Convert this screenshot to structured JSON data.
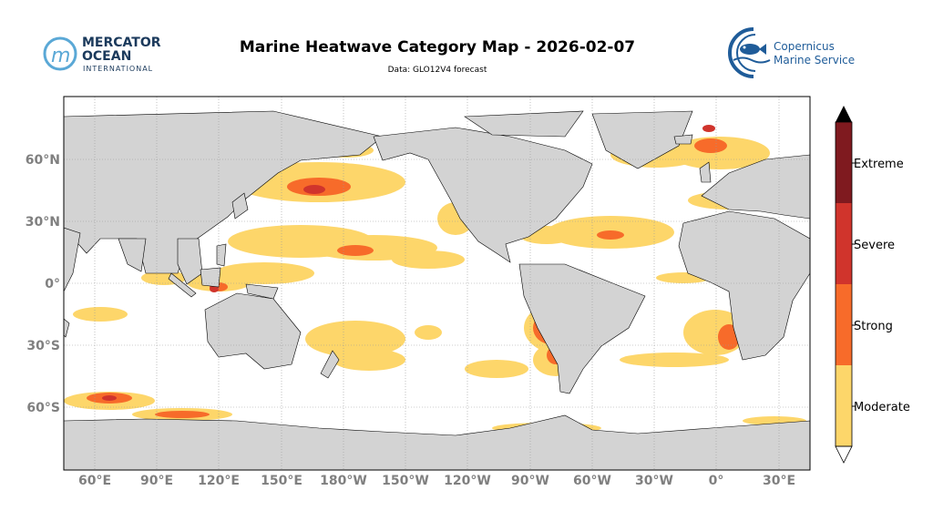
{
  "header": {
    "title": "Marine Heatwave Category Map - 2026-02-07",
    "subtitle": "Data: GLO12V4 forecast"
  },
  "logos": {
    "mercator": {
      "line1": "MERCATOR",
      "line2": "OCEAN",
      "line3": "INTERNATIONAL"
    },
    "copernicus": {
      "line1": "Copernicus",
      "line2": "Marine Service"
    }
  },
  "map": {
    "lat_labels": [
      "60°N",
      "30°N",
      "0°",
      "30°S",
      "60°S"
    ],
    "lon_labels": [
      "60°E",
      "90°E",
      "120°E",
      "150°E",
      "180°W",
      "150°W",
      "120°W",
      "90°W",
      "60°W",
      "30°W",
      "0°",
      "30°E"
    ],
    "colors": {
      "ocean": "#ffffff",
      "land": "#d3d3d3",
      "moderate": "#fdd66a",
      "strong": "#f76b2a",
      "severe": "#d0342c",
      "extreme": "#7f1a1f"
    }
  },
  "colorbar": {
    "categories": [
      "Moderate",
      "Strong",
      "Severe",
      "Extreme"
    ]
  }
}
